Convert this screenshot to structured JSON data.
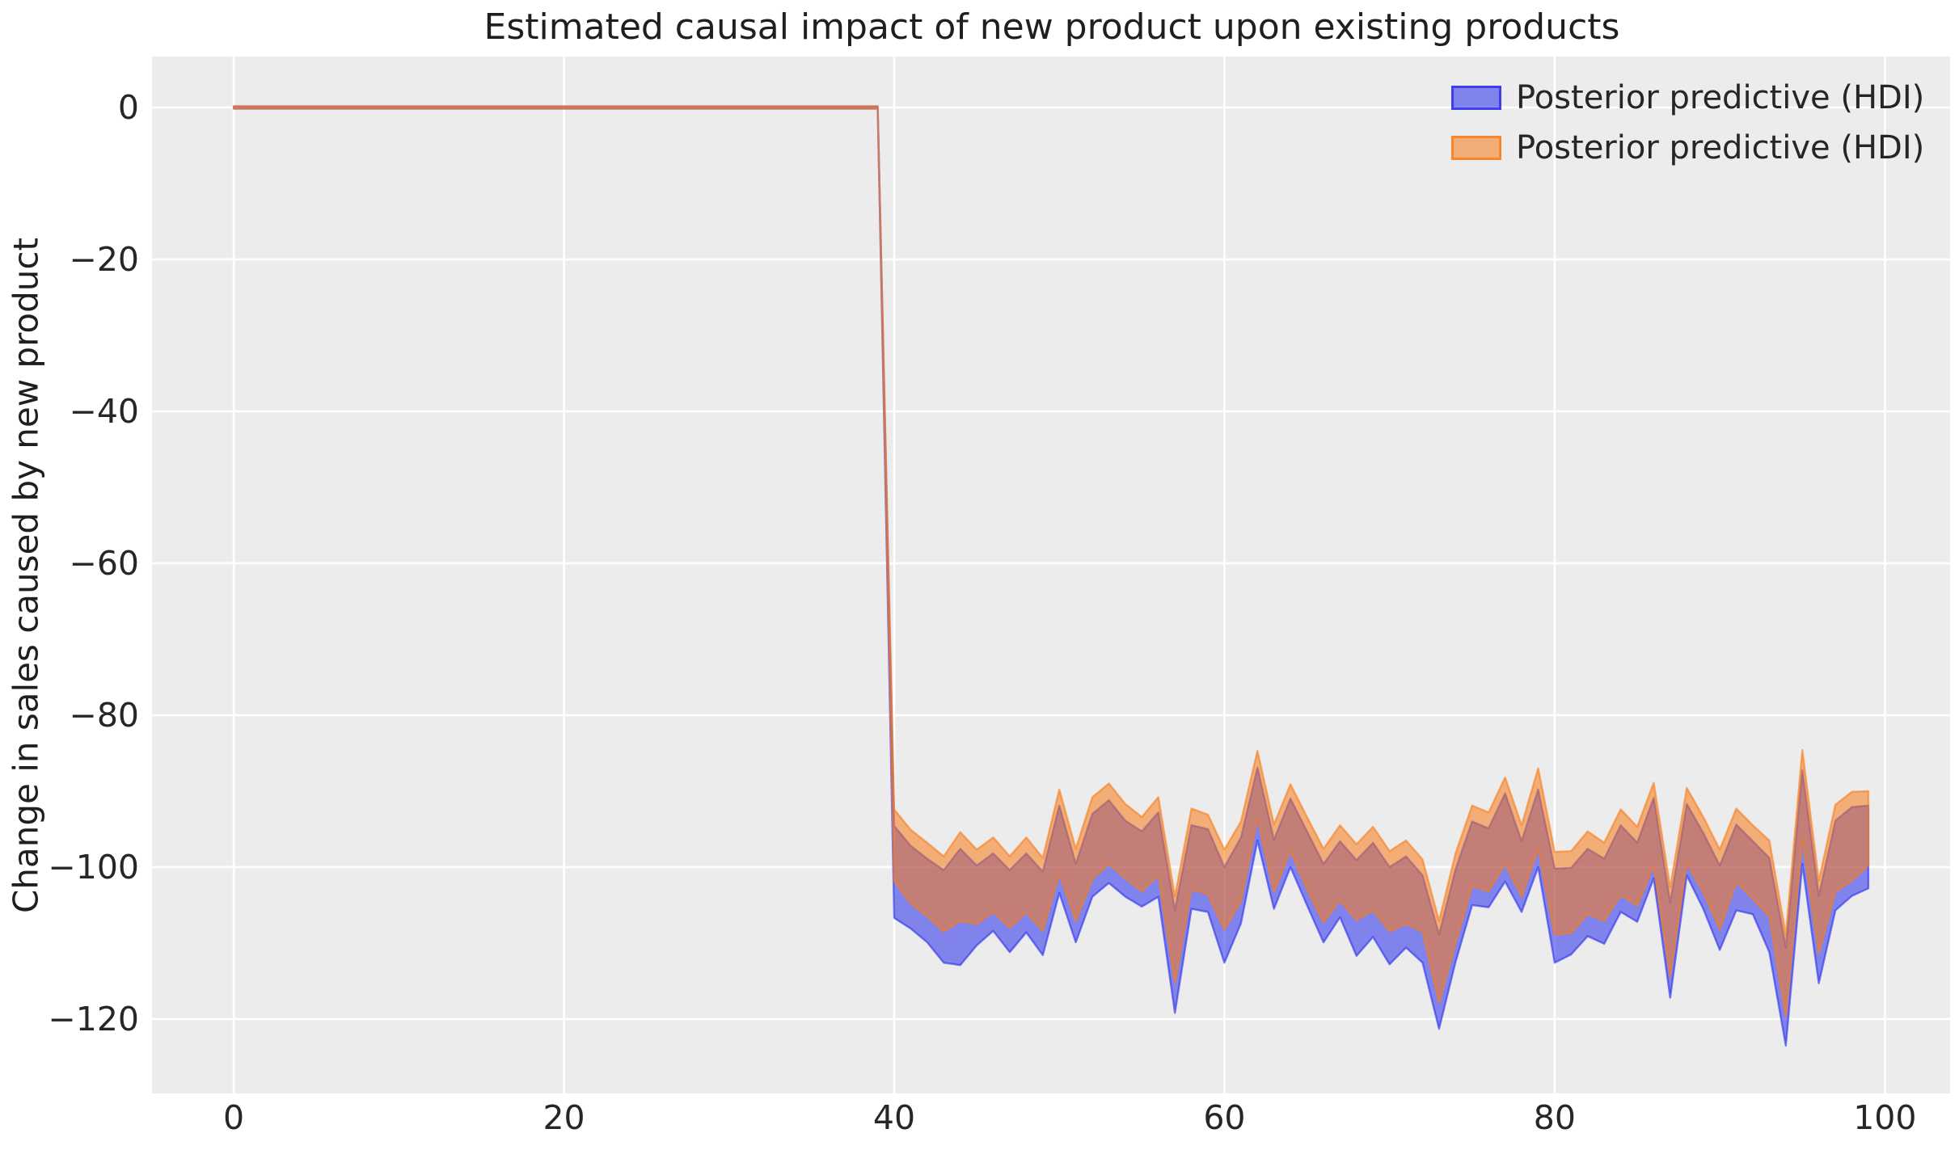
{
  "figure": {
    "background": "#ffffff",
    "axes_background": "#ececec",
    "grid_color": "#ffffff",
    "text_color": "#1f1f1f",
    "tick_color": "#262626"
  },
  "chart_data": {
    "type": "area",
    "title": "Estimated causal impact of new product upon existing products",
    "xlabel": "",
    "ylabel": "Change in sales caused by new product",
    "xlim": [
      -4.95,
      103.95
    ],
    "ylim": [
      -129.8,
      6.7
    ],
    "x_ticks": [
      0,
      20,
      40,
      60,
      80,
      100
    ],
    "y_ticks": [
      0,
      -20,
      -40,
      -60,
      -80,
      -100,
      -120
    ],
    "grid": true,
    "legend_position": "upper right",
    "x_range": [
      0,
      99
    ],
    "intervention_x": 40,
    "pre_period_value": 0,
    "series": [
      {
        "name": "Posterior predictive (HDI)",
        "color": "#2a2eec",
        "fill_opacity": 0.55,
        "pre_hi": 0.15,
        "pre_lo": -0.15,
        "post_x_start": 40,
        "hi": [
          -94.6,
          -97.2,
          -98.9,
          -100.4,
          -97.6,
          -99.8,
          -98.2,
          -100.4,
          -98.2,
          -100.6,
          -91.9,
          -99.6,
          -93.0,
          -91.2,
          -93.9,
          -95.3,
          -92.8,
          -105.7,
          -94.5,
          -95.0,
          -100.0,
          -96.1,
          -86.9,
          -96.4,
          -91.0,
          -95.3,
          -99.6,
          -96.6,
          -99.1,
          -96.8,
          -100.0,
          -98.6,
          -101.1,
          -108.9,
          -100.3,
          -94.0,
          -94.9,
          -90.3,
          -96.6,
          -89.8,
          -100.2,
          -100.1,
          -97.6,
          -98.9,
          -94.5,
          -96.8,
          -90.9,
          -104.7,
          -91.7,
          -95.5,
          -99.8,
          -94.4,
          -96.6,
          -98.8,
          -110.6,
          -87.3,
          -103.8,
          -93.9,
          -92.1,
          -91.9
        ],
        "lo": [
          -106.7,
          -108.1,
          -109.9,
          -112.6,
          -112.9,
          -110.3,
          -108.4,
          -111.2,
          -108.6,
          -111.6,
          -103.4,
          -109.9,
          -103.9,
          -102.1,
          -103.9,
          -105.2,
          -103.9,
          -119.2,
          -105.5,
          -105.9,
          -112.6,
          -107.4,
          -96.5,
          -105.5,
          -100.0,
          -105.0,
          -109.9,
          -106.6,
          -111.7,
          -109.2,
          -112.8,
          -110.6,
          -112.6,
          -121.3,
          -112.5,
          -105.0,
          -105.3,
          -101.9,
          -105.9,
          -100.0,
          -112.6,
          -111.5,
          -109.1,
          -110.1,
          -105.9,
          -107.2,
          -101.5,
          -117.2,
          -101.1,
          -105.5,
          -110.9,
          -105.7,
          -106.2,
          -111.2,
          -123.5,
          -99.6,
          -115.3,
          -105.7,
          -103.8,
          -102.8
        ]
      },
      {
        "name": "Posterior predictive (HDI)",
        "color": "#fa7c17",
        "fill_opacity": 0.55,
        "pre_hi": 0.15,
        "pre_lo": -0.15,
        "post_x_start": 40,
        "hi": [
          -92.4,
          -95.1,
          -96.8,
          -98.6,
          -95.4,
          -97.7,
          -96.1,
          -98.6,
          -96.1,
          -98.8,
          -89.8,
          -97.6,
          -90.8,
          -89.0,
          -91.7,
          -93.4,
          -90.8,
          -103.9,
          -92.3,
          -93.1,
          -97.7,
          -94.0,
          -84.7,
          -94.4,
          -89.1,
          -93.4,
          -97.6,
          -94.5,
          -97.0,
          -94.7,
          -97.9,
          -96.5,
          -99.0,
          -107.1,
          -98.2,
          -91.9,
          -92.8,
          -88.2,
          -94.5,
          -87.0,
          -98.0,
          -97.9,
          -95.3,
          -96.8,
          -92.4,
          -94.7,
          -88.9,
          -102.7,
          -89.6,
          -93.4,
          -97.7,
          -92.3,
          -94.5,
          -96.5,
          -108.9,
          -84.6,
          -101.8,
          -91.8,
          -90.1,
          -90.0
        ],
        "lo": [
          -101.9,
          -104.8,
          -106.5,
          -108.5,
          -107.1,
          -107.5,
          -105.9,
          -108.0,
          -106.0,
          -108.4,
          -100.9,
          -107.1,
          -101.6,
          -99.6,
          -101.5,
          -103.2,
          -101.1,
          -115.3,
          -102.9,
          -103.6,
          -108.2,
          -104.5,
          -93.5,
          -103.3,
          -97.9,
          -102.9,
          -107.3,
          -104.4,
          -107.0,
          -105.7,
          -108.5,
          -107.5,
          -108.5,
          -117.9,
          -110.0,
          -102.5,
          -103.2,
          -99.6,
          -103.9,
          -97.6,
          -108.9,
          -108.7,
          -106.2,
          -107.1,
          -103.7,
          -105.1,
          -99.8,
          -114.4,
          -99.5,
          -103.3,
          -108.2,
          -102.0,
          -104.2,
          -106.5,
          -119.7,
          -96.3,
          -111.4,
          -103.3,
          -101.8,
          -99.8
        ]
      }
    ]
  }
}
